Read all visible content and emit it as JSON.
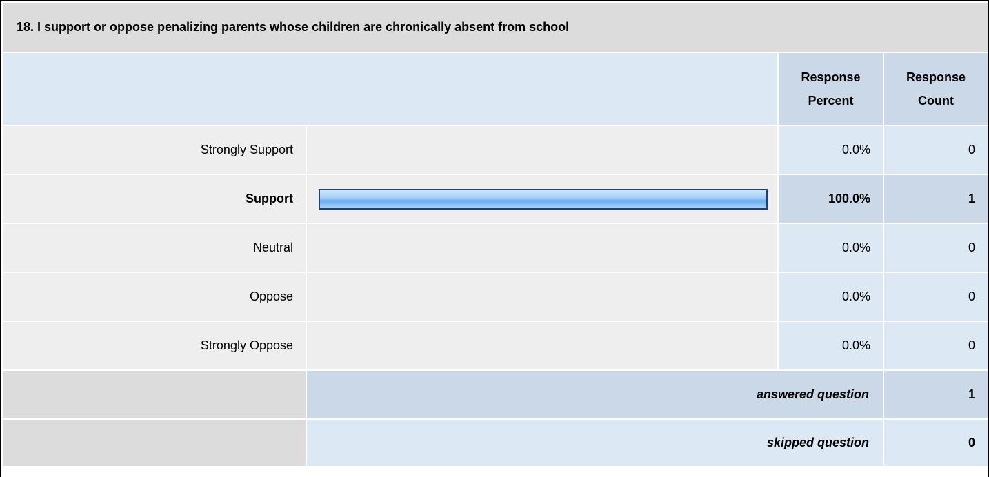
{
  "question": {
    "title": "18. I support or oppose penalizing parents whose children are chronically absent from school"
  },
  "headers": {
    "percent": [
      "Response",
      "Percent"
    ],
    "count": [
      "Response",
      "Count"
    ]
  },
  "rows": [
    {
      "label": "Strongly Support",
      "percent": "0.0%",
      "count": "0",
      "fraction": 0.0
    },
    {
      "label": "Support",
      "percent": "100.0%",
      "count": "1",
      "fraction": 1.0
    },
    {
      "label": "Neutral",
      "percent": "0.0%",
      "count": "0",
      "fraction": 0.0
    },
    {
      "label": "Oppose",
      "percent": "0.0%",
      "count": "0",
      "fraction": 0.0
    },
    {
      "label": "Strongly Oppose",
      "percent": "0.0%",
      "count": "0",
      "fraction": 0.0
    }
  ],
  "footer": {
    "answered_label": "answered question",
    "answered_value": "1",
    "skipped_label": "skipped question",
    "skipped_value": "0"
  },
  "colors": {
    "bar_border": "#1f3f7a",
    "bar_fill": "#6aaef2",
    "header_bg": "#dde8f5",
    "selected_bg": "#cbd8e8"
  }
}
